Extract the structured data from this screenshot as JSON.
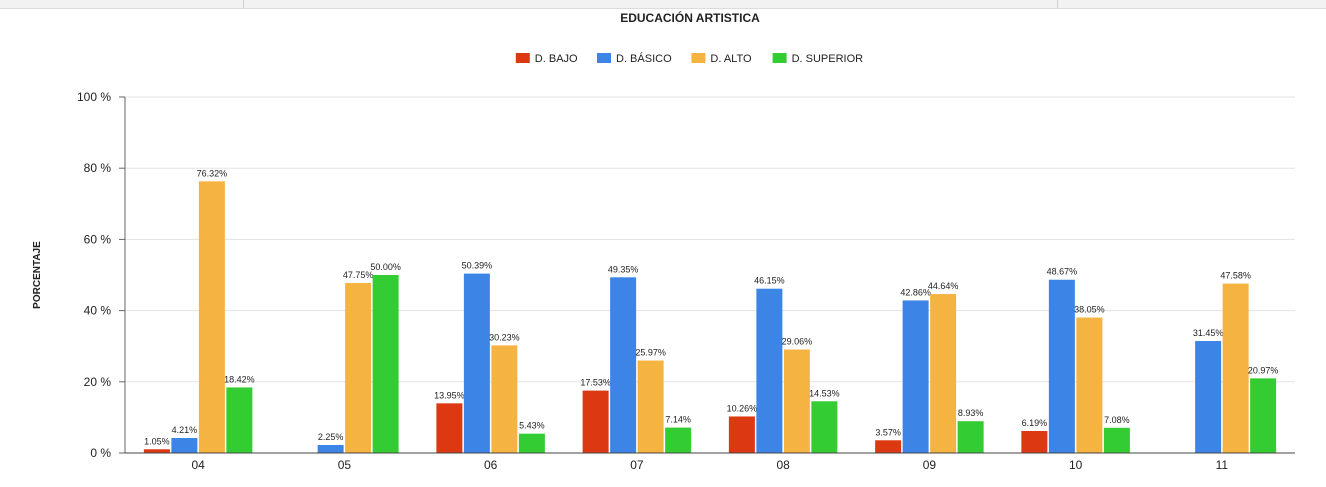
{
  "chart_data": {
    "type": "bar",
    "title": "EDUCACIÓN ARTISTICA",
    "ylabel": "PORCENTAJE",
    "xlabel": "",
    "ylim": [
      0,
      100
    ],
    "yticks": [
      "0 %",
      "20 %",
      "40 %",
      "60 %",
      "80 %",
      "100 %"
    ],
    "grid": true,
    "legend_position": "top-center",
    "categories": [
      "04",
      "05",
      "06",
      "07",
      "08",
      "09",
      "10",
      "11"
    ],
    "series": [
      {
        "name": "D. BAJO",
        "color": "#dc3912",
        "values": [
          1.05,
          null,
          13.95,
          17.53,
          10.26,
          3.57,
          6.19,
          null
        ],
        "labels": [
          "1.05%",
          "",
          "13.95%",
          "17.53%",
          "10.26%",
          "3.57%",
          "6.19%",
          ""
        ]
      },
      {
        "name": "D. BÁSICO",
        "color": "#3c85e6",
        "values": [
          4.21,
          2.25,
          50.39,
          49.35,
          46.15,
          42.86,
          48.67,
          31.45
        ],
        "labels": [
          "4.21%",
          "2.25%",
          "50.39%",
          "49.35%",
          "46.15%",
          "42.86%",
          "48.67%",
          "31.45%"
        ]
      },
      {
        "name": "D. ALTO",
        "color": "#f5b342",
        "values": [
          76.32,
          47.75,
          30.23,
          25.97,
          29.06,
          44.64,
          38.05,
          47.58
        ],
        "labels": [
          "76.32%",
          "47.75%",
          "30.23%",
          "25.97%",
          "29.06%",
          "44.64%",
          "38.05%",
          "47.58%"
        ]
      },
      {
        "name": "D. SUPERIOR",
        "color": "#33cc33",
        "values": [
          18.42,
          50.0,
          5.43,
          7.14,
          14.53,
          8.93,
          7.08,
          20.97
        ],
        "labels": [
          "18.42%",
          "50.00%",
          "5.43%",
          "7.14%",
          "14.53%",
          "8.93%",
          "7.08%",
          "20.97%"
        ]
      }
    ]
  }
}
